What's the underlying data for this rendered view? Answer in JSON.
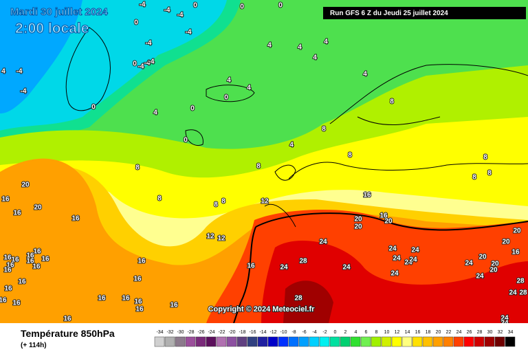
{
  "header": {
    "title": "Mardi 30 juillet 2024",
    "subtitle": "2:00 locale",
    "run": "Run GFS 6 Z du Jeudi 25 juillet 2024"
  },
  "footer": {
    "title": "Température 850hPa",
    "lead": "(+ 114h)",
    "copyright": "Copyright © 2024 Meteociel.fr"
  },
  "legend": {
    "values": [
      -34,
      -32,
      -30,
      -28,
      -26,
      -24,
      -22,
      -20,
      -18,
      -16,
      -14,
      -12,
      -10,
      -8,
      -6,
      -4,
      -2,
      0,
      2,
      4,
      6,
      8,
      10,
      12,
      14,
      16,
      18,
      20,
      22,
      24,
      26,
      28,
      30,
      32,
      34
    ],
    "colors": [
      "#d0d0d0",
      "#b0b0b0",
      "#8c7a8c",
      "#9b4f9b",
      "#7a2a7a",
      "#5c0f5c",
      "#b070b0",
      "#8c50a0",
      "#604080",
      "#304080",
      "#2020a0",
      "#0000c8",
      "#0030ff",
      "#0070ff",
      "#00a0ff",
      "#00d0ff",
      "#00f0f0",
      "#00e0a0",
      "#00d070",
      "#30e030",
      "#70f050",
      "#a0f000",
      "#d0f000",
      "#ffff00",
      "#ffff80",
      "#ffe000",
      "#ffc000",
      "#ffa000",
      "#ff8000",
      "#ff4000",
      "#ff0000",
      "#d00000",
      "#a00000",
      "#700000",
      "#000000"
    ]
  },
  "contour_labels": [
    -4,
    -4,
    -4,
    0,
    0,
    0,
    0,
    -4,
    -4,
    -4,
    0,
    -4,
    -4,
    -4,
    4,
    -4,
    0,
    4,
    4,
    4,
    4,
    4,
    4,
    0,
    0,
    4,
    4,
    8,
    8,
    4,
    0,
    8,
    8,
    8,
    8,
    8,
    8,
    8,
    8,
    8,
    12,
    16,
    20,
    16,
    20,
    16,
    16,
    12,
    12,
    20,
    20,
    16,
    20,
    20,
    20,
    16,
    24,
    24,
    24,
    24,
    24,
    24,
    20,
    24,
    20,
    20,
    24,
    28,
    24,
    28,
    28,
    24,
    24,
    24,
    16,
    16,
    16,
    16,
    16,
    16,
    16,
    16,
    28,
    16,
    16,
    16,
    16,
    16,
    16,
    16,
    16,
    16,
    16,
    16,
    16,
    16,
    16,
    24,
    24
  ]
}
